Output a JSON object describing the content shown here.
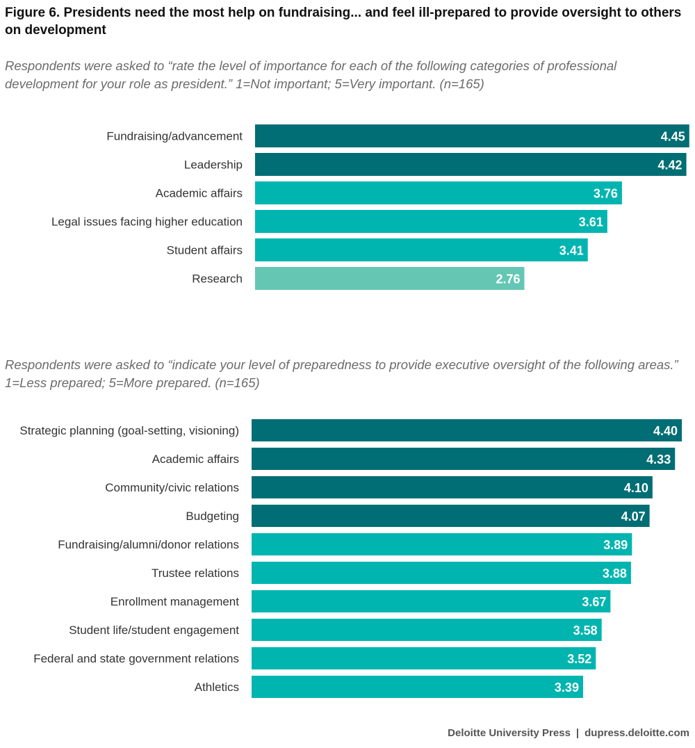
{
  "figure": {
    "title": "Figure 6. Presidents need the most help on fundraising... and feel ill-prepared to provide oversight to others on development",
    "footer_source": "Deloitte University Press",
    "footer_separator": "|",
    "footer_url": "dupress.deloitte.com"
  },
  "colors": {
    "dark": "#006E74",
    "medium": "#00B5B0",
    "light": "#65C6B4"
  },
  "chart_data": [
    {
      "type": "bar",
      "orientation": "horizontal",
      "subtitle": "Respondents were asked to “rate the level of importance for each of the following categories of professional development for your role as president.” 1=Not important; 5=Very important. (n=165)",
      "categories": [
        "Fundraising/advancement",
        "Leadership",
        "Academic affairs",
        "Legal issues facing higher education",
        "Student affairs",
        "Research"
      ],
      "values": [
        4.45,
        4.42,
        3.76,
        3.61,
        3.41,
        2.76
      ],
      "labels": [
        "4.45",
        "4.42",
        "3.76",
        "3.61",
        "3.41",
        "2.76"
      ],
      "color_groups": [
        "dark",
        "dark",
        "medium",
        "medium",
        "medium",
        "light"
      ],
      "xlim": [
        0,
        4.45
      ],
      "grid": false,
      "legend": "none"
    },
    {
      "type": "bar",
      "orientation": "horizontal",
      "subtitle": "Respondents were asked to “indicate your level of preparedness to provide executive oversight of the following areas.” 1=Less prepared; 5=More prepared. (n=165)",
      "categories": [
        "Strategic planning (goal-setting, visioning)",
        "Academic affairs",
        "Community/civic relations",
        "Budgeting",
        "Fundraising/alumni/donor relations",
        "Trustee relations",
        "Enrollment management",
        "Student life/student engagement",
        "Federal and state government relations",
        "Athletics"
      ],
      "values": [
        4.4,
        4.33,
        4.1,
        4.07,
        3.89,
        3.88,
        3.67,
        3.58,
        3.52,
        3.39
      ],
      "labels": [
        "4.40",
        "4.33",
        "4.10",
        "4.07",
        "3.89",
        "3.88",
        "3.67",
        "3.58",
        "3.52",
        "3.39"
      ],
      "color_groups": [
        "dark",
        "dark",
        "dark",
        "dark",
        "medium",
        "medium",
        "medium",
        "medium",
        "medium",
        "medium"
      ],
      "xlim": [
        0,
        4.4
      ],
      "grid": false,
      "legend": "none"
    }
  ]
}
